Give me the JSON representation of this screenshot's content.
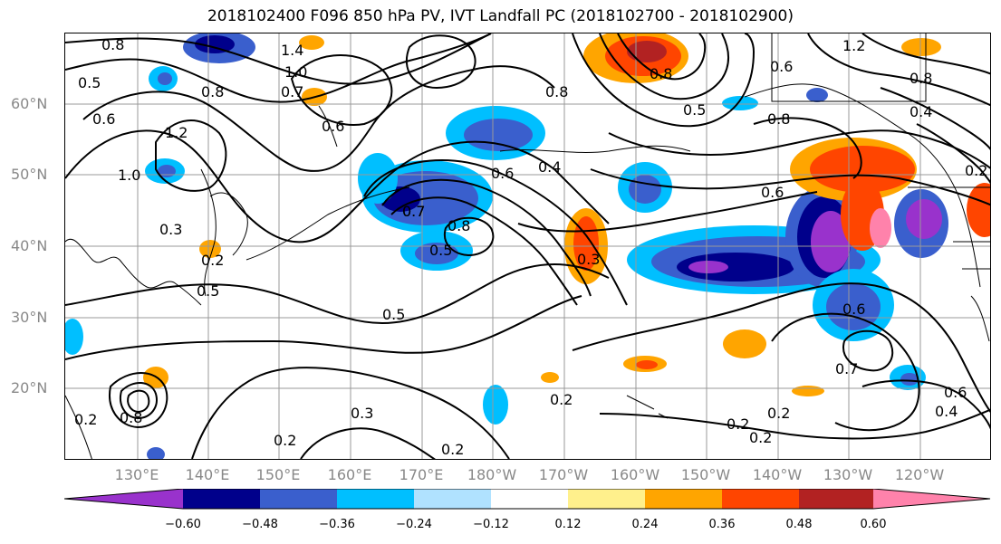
{
  "title": "2018102400 F096 850 hPa PV, IVT Landfall PC (2018102700 - 2018102900)",
  "lat_labels": [
    "60°N",
    "50°N",
    "40°N",
    "30°N",
    "20°N"
  ],
  "lon_labels": [
    "130°E",
    "140°E",
    "150°E",
    "160°E",
    "170°E",
    "180°W",
    "170°W",
    "160°W",
    "150°W",
    "140°W",
    "130°W",
    "120°W"
  ],
  "colorbar": {
    "ticks": [
      "−0.60",
      "−0.48",
      "−0.36",
      "−0.24",
      "−0.12",
      "0.12",
      "0.24",
      "0.36",
      "0.48",
      "0.60"
    ],
    "colors": [
      "#9932cc",
      "#00008b",
      "#3a5fcd",
      "#00bfff",
      "#b0e2ff",
      "#ffffff",
      "#fff08c",
      "#ffa500",
      "#ff4500",
      "#b22222",
      "#ff82ab"
    ]
  },
  "contour_labels": [
    "0.8",
    "1.4",
    "1.0",
    "0.7",
    "0.5",
    "0.6",
    "1.2",
    "1.0",
    "0.8",
    "0.3",
    "0.7",
    "0.8",
    "0.5",
    "0.6",
    "0.4",
    "0.6",
    "0.7",
    "0.8",
    "0.5",
    "0.3",
    "0.5",
    "0.2",
    "0.2",
    "0.3",
    "0.2",
    "0.2",
    "0.2",
    "0.6",
    "0.8",
    "0.5",
    "0.6",
    "0.7",
    "0.6",
    "0.4",
    "0.2",
    "0.2",
    "0.2",
    "0.4",
    "1.2",
    "0.8",
    "0.6",
    "0.2",
    "0.8",
    "0.8"
  ]
}
